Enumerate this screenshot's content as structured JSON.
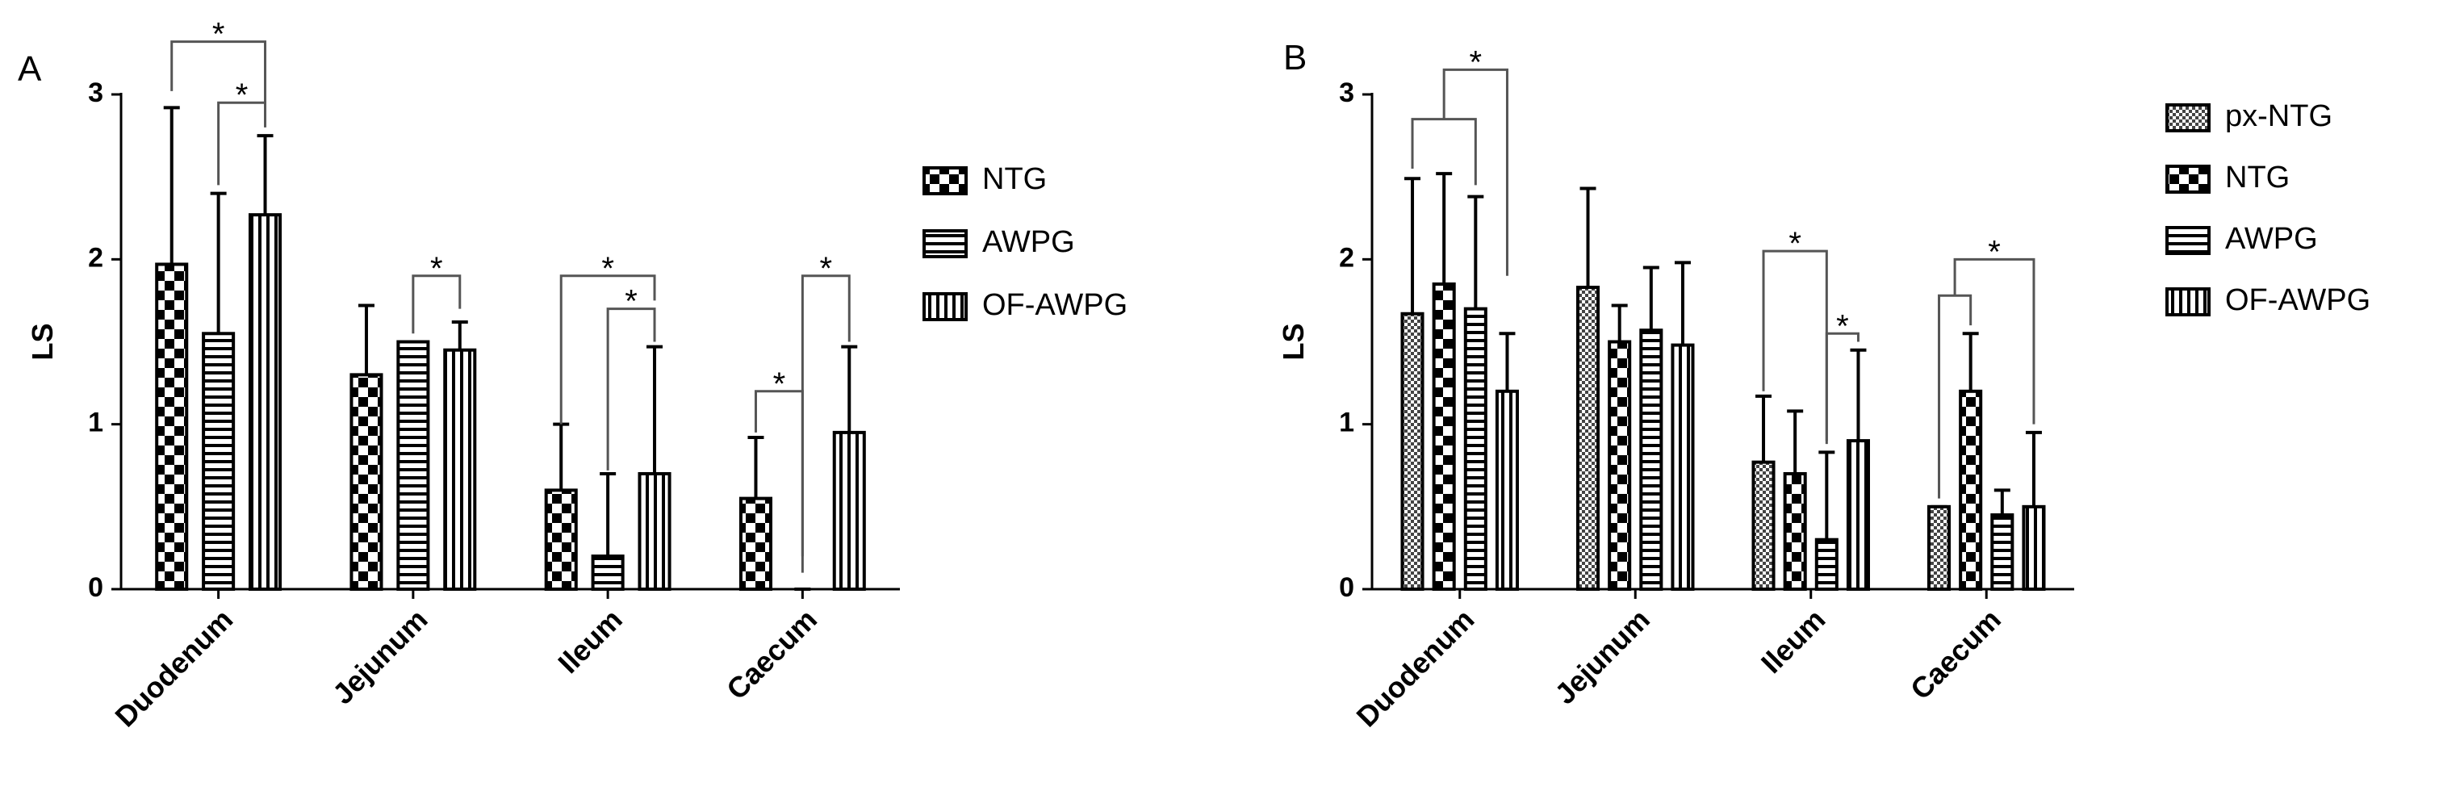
{
  "chart_data": [
    {
      "type": "bar",
      "panel_label": "A",
      "y_label": "LS",
      "categories": [
        "Duodenum",
        "Jejunum",
        "Ileum",
        "Caecum"
      ],
      "series": [
        {
          "name": "NTG",
          "color": "#000000",
          "pattern": "diamond",
          "values": [
            1.97,
            1.3,
            0.6,
            0.55
          ],
          "errors": [
            0.95,
            0.42,
            0.4,
            0.37
          ]
        },
        {
          "name": "AWPG",
          "color": "#000000",
          "pattern": "horizontal",
          "values": [
            1.55,
            1.5,
            0.2,
            0
          ],
          "errors": [
            0.85,
            0,
            0.5,
            0
          ]
        },
        {
          "name": "OF-AWPG",
          "color": "#000000",
          "pattern": "vertical",
          "values": [
            2.27,
            1.45,
            0.7,
            0.95
          ],
          "errors": [
            0.48,
            0.17,
            0.77,
            0.52
          ]
        }
      ],
      "ylim": [
        0,
        3
      ],
      "yticks": [
        0,
        1,
        2,
        3
      ],
      "annotations": [
        "*",
        "*",
        "*",
        "*",
        "*",
        "*",
        "*"
      ]
    },
    {
      "type": "bar",
      "panel_label": "B",
      "y_label": "LS",
      "categories": [
        "Duodenum",
        "Jejunum",
        "Ileum",
        "Caecum"
      ],
      "series": [
        {
          "name": "px-NTG",
          "color": "#000000",
          "pattern": "checker",
          "values": [
            1.67,
            1.83,
            0.77,
            0.5
          ],
          "errors": [
            0.82,
            0.6,
            0.4,
            0
          ]
        },
        {
          "name": "NTG",
          "color": "#000000",
          "pattern": "diamond",
          "values": [
            1.85,
            1.5,
            0.7,
            1.2
          ],
          "errors": [
            0.67,
            0.22,
            0.38,
            0.35
          ]
        },
        {
          "name": "AWPG",
          "color": "#000000",
          "pattern": "horizontal",
          "values": [
            1.7,
            1.57,
            0.3,
            0.45
          ],
          "errors": [
            0.68,
            0.38,
            0.53,
            0.15
          ]
        },
        {
          "name": "OF-AWPG",
          "color": "#000000",
          "pattern": "vertical",
          "values": [
            1.2,
            1.48,
            0.9,
            0.5
          ],
          "errors": [
            0.35,
            0.5,
            0.55,
            0.45
          ]
        }
      ],
      "ylim": [
        0,
        3
      ],
      "yticks": [
        0,
        1,
        2,
        3
      ],
      "annotations": [
        "*",
        "*",
        "*",
        "*"
      ]
    }
  ]
}
